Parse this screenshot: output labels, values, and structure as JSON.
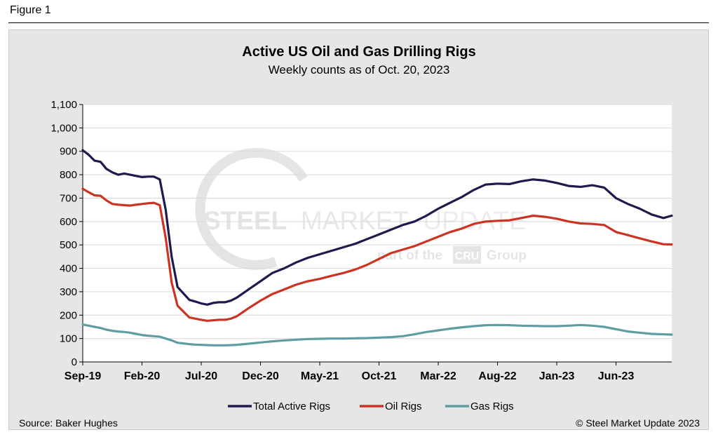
{
  "figure_label": "Figure 1",
  "source": "Source: Baker Hughes",
  "copyright": "© Steel Market Update 2023",
  "watermark": {
    "line1_bold": "STEEL",
    "line1_mid": "MARKET",
    "line1_light": "UPDATE",
    "line2_pre": "part of the",
    "line2_badge": "CRU",
    "line2_post": "Group"
  },
  "colors": {
    "panel_bg": "#e6e6e6",
    "plot_bg": "#ffffff",
    "total": "#1f1a4d",
    "oil": "#cc3322",
    "gas": "#5e9ea2",
    "grid": "#d9d9d9"
  },
  "chart_data": {
    "type": "line",
    "title": "Active US Oil and Gas Drilling Rigs",
    "subtitle": "Weekly counts as of Oct. 20, 2023",
    "xlabel": "",
    "ylabel": "",
    "ylim": [
      0,
      1100
    ],
    "y_ticks": [
      0,
      100,
      200,
      300,
      400,
      500,
      600,
      700,
      800,
      900,
      1000,
      1100
    ],
    "y_tick_labels": [
      "0",
      "100",
      "200",
      "300",
      "400",
      "500",
      "600",
      "700",
      "800",
      "900",
      "1,000",
      "1,100"
    ],
    "x_tick_labels": [
      "Sep-19",
      "Feb-20",
      "Jul-20",
      "Dec-20",
      "May-21",
      "Oct-21",
      "Mar-22",
      "Aug-22",
      "Jan-23",
      "Jun-23"
    ],
    "x_tick_months": [
      0,
      5,
      10,
      15,
      20,
      25,
      30,
      35,
      40,
      45
    ],
    "x_range_months": [
      0,
      49.7
    ],
    "grid": "horizontal",
    "legend_position": "bottom",
    "x_months": [
      0,
      0.5,
      1,
      1.5,
      2,
      2.5,
      3,
      3.5,
      4,
      4.5,
      5,
      5.5,
      6,
      6.5,
      7,
      7.5,
      8,
      9,
      9.5,
      10,
      10.5,
      11,
      11.5,
      12,
      12.5,
      13,
      14,
      15,
      16,
      17,
      18,
      19,
      20,
      21,
      22,
      23,
      24,
      25,
      26,
      27,
      28,
      29,
      30,
      31,
      32,
      33,
      34,
      35,
      36,
      37,
      38,
      39,
      40,
      41,
      42,
      43,
      44,
      45,
      46,
      47,
      48,
      49,
      49.7
    ],
    "series": [
      {
        "name": "Total Active Rigs",
        "values": [
          905,
          885,
          860,
          855,
          825,
          810,
          800,
          805,
          800,
          795,
          790,
          792,
          792,
          780,
          650,
          450,
          320,
          265,
          258,
          250,
          245,
          252,
          255,
          255,
          262,
          275,
          310,
          345,
          380,
          400,
          425,
          445,
          460,
          475,
          490,
          505,
          525,
          545,
          565,
          585,
          600,
          625,
          655,
          680,
          705,
          735,
          758,
          762,
          760,
          772,
          780,
          775,
          765,
          752,
          748,
          755,
          745,
          700,
          675,
          655,
          630,
          615,
          625
        ]
      },
      {
        "name": "Oil Rigs",
        "values": [
          740,
          725,
          712,
          710,
          690,
          675,
          672,
          670,
          668,
          672,
          675,
          678,
          680,
          670,
          530,
          340,
          240,
          190,
          185,
          180,
          176,
          178,
          180,
          180,
          185,
          195,
          230,
          262,
          290,
          310,
          330,
          345,
          355,
          368,
          380,
          395,
          415,
          440,
          465,
          480,
          495,
          515,
          535,
          555,
          570,
          590,
          600,
          603,
          605,
          615,
          625,
          620,
          612,
          600,
          592,
          590,
          585,
          555,
          542,
          528,
          515,
          503,
          502
        ]
      },
      {
        "name": "Gas Rigs",
        "values": [
          160,
          155,
          150,
          145,
          138,
          133,
          130,
          128,
          125,
          120,
          115,
          112,
          110,
          108,
          100,
          92,
          82,
          76,
          74,
          73,
          72,
          71,
          71,
          71,
          72,
          73,
          78,
          83,
          88,
          92,
          95,
          98,
          99,
          100,
          100,
          101,
          102,
          104,
          106,
          110,
          118,
          128,
          135,
          142,
          148,
          153,
          157,
          158,
          157,
          155,
          154,
          153,
          153,
          155,
          158,
          155,
          150,
          140,
          130,
          125,
          120,
          118,
          117
        ]
      }
    ]
  }
}
